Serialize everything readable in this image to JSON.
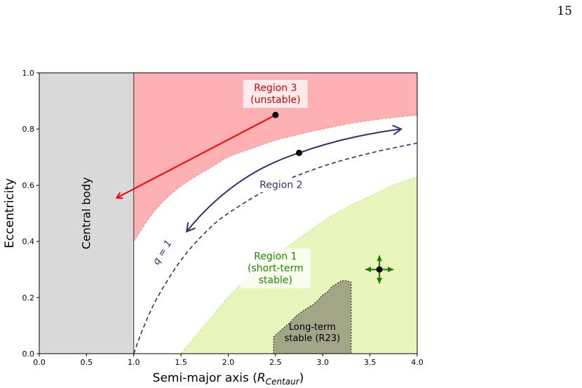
{
  "page": {
    "number": "15"
  },
  "chart_data": {
    "type": "area",
    "xlabel": "Semi-major axis (R_Centaur)",
    "xlabel_main": "Semi-major axis (",
    "xlabel_sym": "R",
    "xlabel_sub": "Centaur",
    "xlabel_end": ")",
    "ylabel": "Eccentricity",
    "xlim": [
      0.0,
      4.0
    ],
    "ylim": [
      0.0,
      1.0
    ],
    "xticks": [
      0.0,
      0.5,
      1.0,
      1.5,
      2.0,
      2.5,
      3.0,
      3.5,
      4.0
    ],
    "yticks": [
      0.0,
      0.2,
      0.4,
      0.6,
      0.8,
      1.0
    ],
    "xtick_labels": [
      "0.0",
      "0.5",
      "1.0",
      "1.5",
      "2.0",
      "2.5",
      "3.0",
      "3.5",
      "4.0"
    ],
    "ytick_labels": [
      "0.0",
      "0.2",
      "0.4",
      "0.6",
      "0.8",
      "1.0"
    ],
    "grid": false,
    "regions": {
      "central_body": {
        "label": "Central body",
        "x_max": 1.0,
        "color": "#d9d9d9"
      },
      "region3": {
        "label_lines": [
          "Region 3",
          "(unstable)"
        ],
        "color": "#ffb0b3",
        "edge_color": "#f08a90",
        "lower_boundary": [
          [
            1.0,
            0.4
          ],
          [
            1.2,
            0.5
          ],
          [
            1.4,
            0.57
          ],
          [
            1.6,
            0.62
          ],
          [
            1.8,
            0.66
          ],
          [
            2.0,
            0.7
          ],
          [
            2.2,
            0.725
          ],
          [
            2.5,
            0.76
          ],
          [
            2.8,
            0.785
          ],
          [
            3.0,
            0.8
          ],
          [
            3.3,
            0.82
          ],
          [
            3.6,
            0.835
          ],
          [
            4.0,
            0.85
          ]
        ]
      },
      "region2": {
        "label": "Region 2",
        "color": "#3f2a6e"
      },
      "region1": {
        "label_lines": [
          "Region 1",
          "(short-term",
          "stable)"
        ],
        "color": "#e8f5bd",
        "edge_color": "#c9e680",
        "upper_boundary": [
          [
            1.5,
            0.0
          ],
          [
            1.75,
            0.1
          ],
          [
            2.0,
            0.2
          ],
          [
            2.25,
            0.28
          ],
          [
            2.5,
            0.35
          ],
          [
            2.75,
            0.41
          ],
          [
            3.0,
            0.47
          ],
          [
            3.25,
            0.52
          ],
          [
            3.5,
            0.56
          ],
          [
            3.75,
            0.6
          ],
          [
            4.0,
            0.63
          ]
        ]
      },
      "long_term_stable": {
        "label_lines": [
          "Long-term",
          "stable (R23)"
        ],
        "color": "#a3a587",
        "outline": [
          [
            2.48,
            0.0
          ],
          [
            2.48,
            0.06
          ],
          [
            2.53,
            0.075
          ],
          [
            2.58,
            0.09
          ],
          [
            2.65,
            0.11
          ],
          [
            2.72,
            0.135
          ],
          [
            2.78,
            0.15
          ],
          [
            2.85,
            0.165
          ],
          [
            2.9,
            0.175
          ],
          [
            2.95,
            0.19
          ],
          [
            3.0,
            0.21
          ],
          [
            3.05,
            0.22
          ],
          [
            3.1,
            0.24
          ],
          [
            3.15,
            0.25
          ],
          [
            3.2,
            0.26
          ],
          [
            3.25,
            0.26
          ],
          [
            3.3,
            0.255
          ],
          [
            3.3,
            0.0
          ]
        ]
      }
    },
    "q_equals_1_curve": {
      "label": "q = 1",
      "points": [
        [
          1.0,
          0.0
        ],
        [
          1.1,
          0.091
        ],
        [
          1.25,
          0.2
        ],
        [
          1.5,
          0.333
        ],
        [
          1.75,
          0.429
        ],
        [
          2.0,
          0.5
        ],
        [
          2.5,
          0.6
        ],
        [
          3.0,
          0.667
        ],
        [
          3.5,
          0.714
        ],
        [
          4.0,
          0.75
        ]
      ]
    },
    "points": [
      {
        "x": 2.5,
        "y": 0.85,
        "region": "region3"
      },
      {
        "x": 2.75,
        "y": 0.715,
        "region": "region2"
      },
      {
        "x": 3.6,
        "y": 0.3,
        "region": "region1"
      }
    ],
    "arrows": [
      {
        "region": "region3",
        "color": "#ff0000",
        "from": [
          2.5,
          0.85
        ],
        "to": [
          0.82,
          0.555
        ]
      },
      {
        "region": "region2",
        "color": "#3f2a6e",
        "from": [
          2.75,
          0.715
        ],
        "to": [
          1.56,
          0.435
        ],
        "direction": "inward"
      },
      {
        "region": "region2",
        "color": "#3f2a6e",
        "from": [
          2.75,
          0.715
        ],
        "to": [
          3.83,
          0.8
        ],
        "direction": "outward"
      }
    ],
    "colors": {
      "region3_text": "#e00000",
      "region2_text": "#3f2a6e",
      "region1_text": "#1a8a00",
      "cross_arrows": "#1a7a00"
    }
  }
}
